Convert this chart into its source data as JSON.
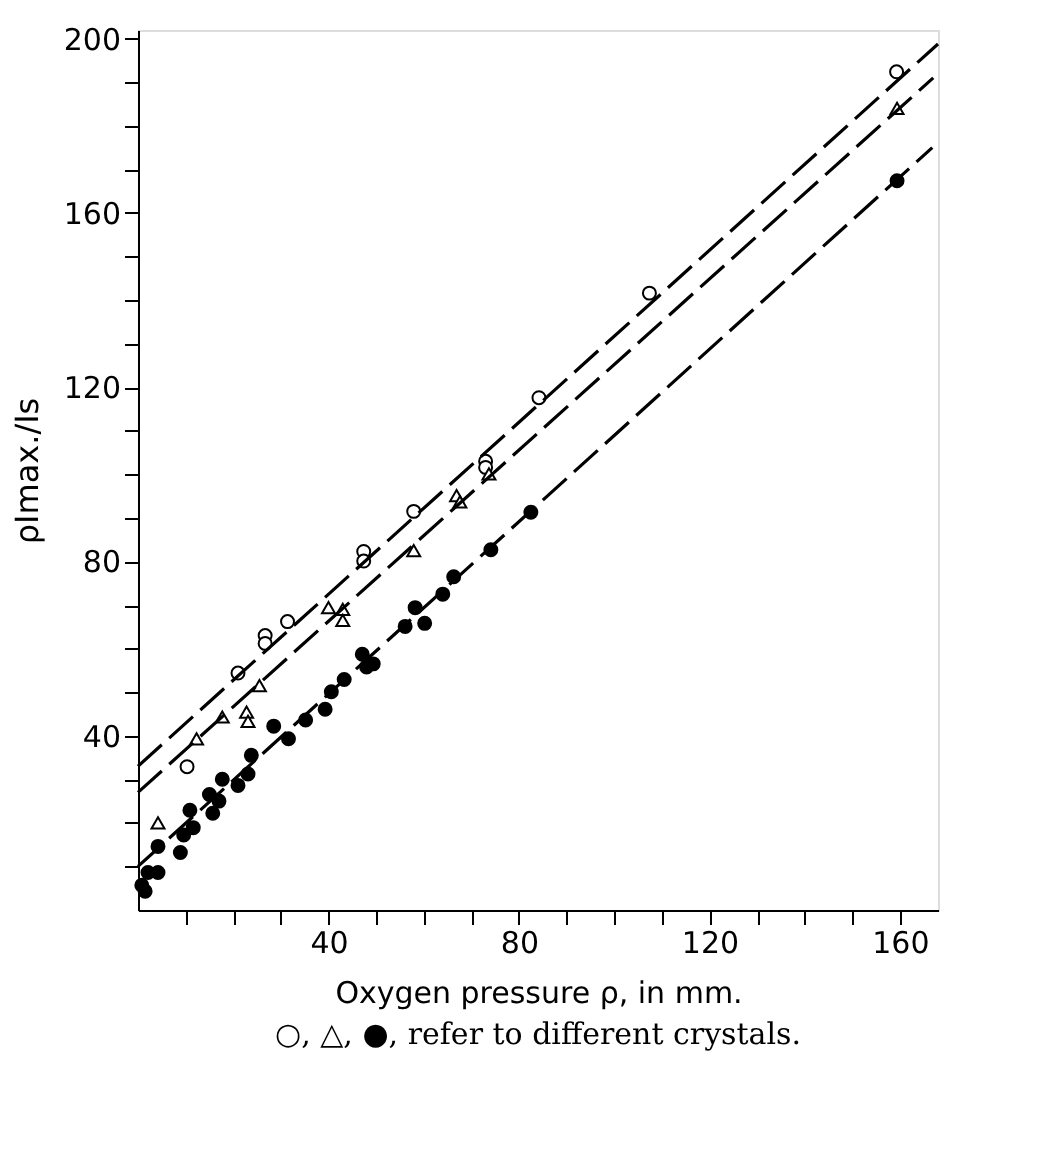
{
  "chart_data": {
    "type": "scatter",
    "xlabel": "Oxygen pressure ρ, in mm.",
    "ylabel": "ρImax./Is",
    "annotations": [
      "○, △, ●, refer to different crystals."
    ],
    "xlim": [
      0,
      168
    ],
    "ylim": [
      0,
      202
    ],
    "xticks": [
      {
        "value": 10,
        "label": null
      },
      {
        "value": 20,
        "label": null
      },
      {
        "value": 30,
        "label": null
      },
      40,
      {
        "value": 50,
        "label": null
      },
      {
        "value": 60,
        "label": null
      },
      {
        "value": 70,
        "label": null
      },
      80,
      {
        "value": 90,
        "label": null
      },
      {
        "value": 100,
        "label": null
      },
      {
        "value": 110,
        "label": null
      },
      120,
      {
        "value": 130,
        "label": null
      },
      {
        "value": 140,
        "label": null
      },
      {
        "value": 150,
        "label": null
      },
      160
    ],
    "yticks": [
      {
        "value": 10,
        "label": null
      },
      {
        "value": 20,
        "label": null
      },
      {
        "value": 30,
        "label": null
      },
      40,
      {
        "value": 50,
        "label": null
      },
      {
        "value": 60,
        "label": null
      },
      {
        "value": 70,
        "label": null
      },
      80,
      {
        "value": 90,
        "label": null
      },
      {
        "value": 100,
        "label": null
      },
      {
        "value": 110,
        "label": null
      },
      120,
      {
        "value": 130,
        "label": null
      },
      {
        "value": 140,
        "label": null
      },
      {
        "value": 150,
        "label": null
      },
      160,
      {
        "value": 170,
        "label": null
      },
      {
        "value": 180,
        "label": null
      },
      {
        "value": 190,
        "label": null
      },
      200
    ],
    "grid": false,
    "series": [
      {
        "marker": "circle",
        "color": "#ffffff",
        "x": [
          159.3,
          107.4,
          84.2,
          73,
          73,
          57.9,
          47.4,
          47.4,
          31.4,
          26.7,
          26.7,
          21,
          10.3
        ],
        "values": [
          192.4,
          141.6,
          117.6,
          103,
          101.6,
          91.5,
          82.3,
          80.1,
          66.2,
          63,
          61.2,
          54.4,
          32.9
        ]
      },
      {
        "marker": "triangle",
        "color": "#ffffff",
        "x": [
          159.4,
          73.7,
          66.9,
          67.6,
          57.9,
          43,
          43,
          40,
          25.5,
          22.8,
          17.7,
          23.1,
          12.3,
          4.2
        ],
        "values": [
          184,
          100.1,
          95.1,
          93.7,
          82.5,
          69,
          66.5,
          69.4,
          51.5,
          45.4,
          44.3,
          43.3,
          39.3,
          20
        ]
      },
      {
        "marker": "circle",
        "color": "#000000",
        "x": [
          159.4,
          82.5,
          74.1,
          66.3,
          64,
          58.2,
          56.1,
          60.2,
          47.1,
          49.4,
          48,
          43.3,
          40.6,
          39.3,
          35.2,
          31.6,
          28.5,
          23.8,
          23.1,
          21,
          17.7,
          15,
          17,
          15.7,
          11.6,
          10.9,
          9.6,
          8.9,
          4.2,
          2.1,
          4.2,
          0.8,
          1.5
        ],
        "values": [
          167.4,
          91.3,
          82.7,
          76.5,
          72.5,
          69.4,
          65.1,
          65.8,
          58.7,
          56.5,
          55.8,
          52.9,
          50.1,
          46.1,
          43.6,
          39.3,
          42.2,
          35.5,
          31.2,
          28.6,
          30,
          26.5,
          25,
          22.2,
          18.9,
          22.9,
          17.2,
          13.2,
          14.6,
          8.6,
          8.6,
          5.7,
          4.3
        ]
      },
      {
        "type": "line",
        "line_style": "dashed",
        "color": "#000000",
        "x": [
          0,
          168
        ],
        "values": [
          33,
          198.8
        ]
      },
      {
        "type": "line",
        "line_style": "dashed",
        "color": "#000000",
        "x": [
          0,
          167
        ],
        "values": [
          27,
          191
        ]
      },
      {
        "type": "line",
        "line_style": "dashed",
        "color": "#000000",
        "x": [
          0,
          166.8
        ],
        "values": [
          10,
          175
        ]
      }
    ]
  }
}
